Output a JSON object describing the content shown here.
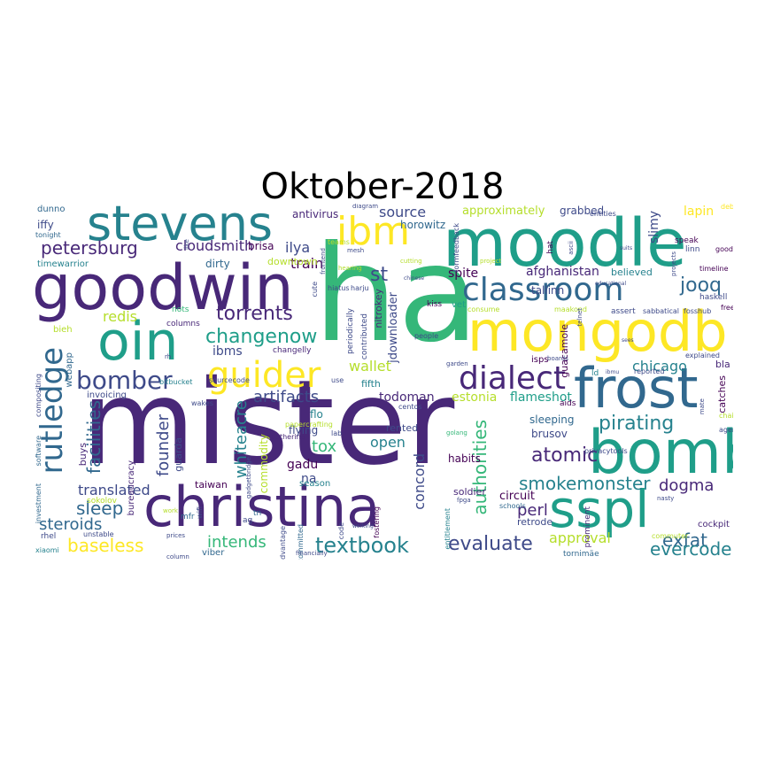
{
  "title": "Oktober-2018",
  "palette": [
    "#440154",
    "#482878",
    "#3e4a89",
    "#31688e",
    "#26828e",
    "#1f9e89",
    "#35b779",
    "#6ece58",
    "#b5de2b",
    "#fde725"
  ],
  "words": {
    "ha": "ha",
    "mister": "mister",
    "moodle": "moodle",
    "goodwin": "goodwin",
    "christina": "christina",
    "mongodb": "mongodb",
    "bomb": "bomb",
    "frost": "frost",
    "sspl": "sspl",
    "stevens": "stevens",
    "oin": "oin",
    "classroom": "classroom",
    "ibm": "ibm",
    "dialect": "dialect",
    "guider": "guider",
    "rutledge": "rutledge",
    "bomber": "bomber",
    "petersburg": "petersburg",
    "torrents": "torrents",
    "changenow": "changenow",
    "textbook": "textbook",
    "evaluate": "evaluate",
    "baseless": "baseless",
    "steroids": "steroids",
    "sleep": "sleep",
    "authorities": "authorities",
    "atomic": "atomic",
    "pirating": "pirating",
    "smokemonster": "smokemonster",
    "exfat": "exfat",
    "evercode": "evercode",
    "dogma": "dogma",
    "perl": "perl",
    "tox": "tox",
    "artifacts": "artifacts",
    "whiteacre": "whiteacre",
    "founder": "founder",
    "facilities": "facilities",
    "intends": "intends",
    "translated": "translated",
    "jooq": "jooq",
    "st": "st",
    "source": "source",
    "train": "train",
    "ilya": "ilya",
    "cloudsmith": "cloudsmith",
    "redis": "redis",
    "wallet": "wallet",
    "approval": "approval",
    "concord": "concord",
    "open": "open",
    "chicago": "chicago",
    "estonia": "estonia",
    "flameshot": "flameshot",
    "todoman": "todoman",
    "afghanistan": "afghanistan",
    "approximately": "approximately",
    "grabbed": "grabbed",
    "lapin": "lapin",
    "slimy": "slimy",
    "horowitz": "horowitz",
    "antivirus": "antivirus",
    "brisa": "brisa",
    "downtown": "downtown",
    "dirty": "dirty",
    "timewarrior": "timewarrior",
    "iffy": "iffy",
    "dunno": "dunno",
    "tonight": "tonight",
    "bieh": "bieh",
    "webapp": "webapp",
    "invoicing": "invoicing",
    "buys": "buys",
    "sokolov": "sokolov",
    "rhel": "rhel",
    "xiaomi": "xiaomi",
    "ibms": "ibms",
    "columns": "columns",
    "nots": "nots",
    "commodity": "commodity",
    "guarda": "guarda",
    "gadu": "gadu",
    "na": "na",
    "season": "season",
    "taiwan": "taiwan",
    "flying": "flying",
    "flo": "flo",
    "fifth": "fifth",
    "rented": "rented",
    "habits": "habits",
    "brusov": "brusov",
    "sleeping": "sleeping",
    "circuit": "circuit",
    "tallinn": "tallinn",
    "retrode": "retrode",
    "tornimae": "tornimäe",
    "viber": "viber",
    "soldier": "soldier",
    "spite": "spite",
    "believed": "believed",
    "vet": "vet",
    "kiss": "kiss",
    "nitrokey": "nitrokey",
    "jdownloader": "jdownloader",
    "isps": "isps",
    "guacamole": "guacamole",
    "ld": "ld",
    "aids": "aids",
    "bla": "bla",
    "catches": "catches",
    "cockpit": "cockpit",
    "speak": "speak",
    "hat": "hat",
    "entities": "entities",
    "debug": "debug",
    "timeline": "timeline",
    "haskell": "haskell",
    "free": "free",
    "explained": "explained",
    "agent": "agent",
    "chairs": "chairs",
    "linn": "linn",
    "good": "good",
    "periodically": "periodically",
    "contributed": "contributed",
    "changelly": "changelly",
    "bitbucket": "bitbucket",
    "sourcecode": "sourcecode",
    "bureaucracy": "bureaucracy",
    "wifi": "wifi",
    "mfr": "mfr",
    "tn": "tn",
    "ag": "ag",
    "committed": "committed",
    "unstable": "unstable",
    "papercrafting": "papercrafting",
    "advantage": "advantage",
    "code": "code",
    "fostering": "fostering",
    "prominent": "prominent",
    "schools": "schools",
    "entitlement": "entitlement",
    "commuter": "commuter",
    "financially": "financially",
    "investment": "investment",
    "software": "software",
    "compositing": "compositing",
    "wakes": "wakes",
    "bothering": "bothering",
    "lab": "lab",
    "golang": "golang",
    "centos": "centos",
    "use": "use",
    "people": "people",
    "garden": "garden",
    "consume": "consume",
    "maakond": "maakond",
    "assert": "assert",
    "sabbatical": "sabbatical",
    "fosshub": "fosshub",
    "reported": "reported",
    "boards": "boards",
    "diagram": "diagram",
    "hearing": "hearing",
    "hiatus": "hiatus",
    "frontend": "frontend",
    "harju": "harju",
    "formfeedback": "formfeedback",
    "project": "project",
    "cute": "cute",
    "like": "like",
    "projects": "projects",
    "rh": "rh",
    "work": "work",
    "prices": "prices",
    "column": "column",
    "fpga": "fpga",
    "nasty": "nasty",
    "privacytools": "privacytools",
    "mate": "mate",
    "telnet": "telnet",
    "ascii": "ascii",
    "mesh": "mesh",
    "teams": "teams",
    "cutting": "cutting",
    "chinese": "chinese",
    "working": "working",
    "gadgetbridge": "gadgetbridge",
    "educational": "educational",
    "suits": "suits",
    "sees": "sees",
    "ibmu": "ibmu"
  }
}
